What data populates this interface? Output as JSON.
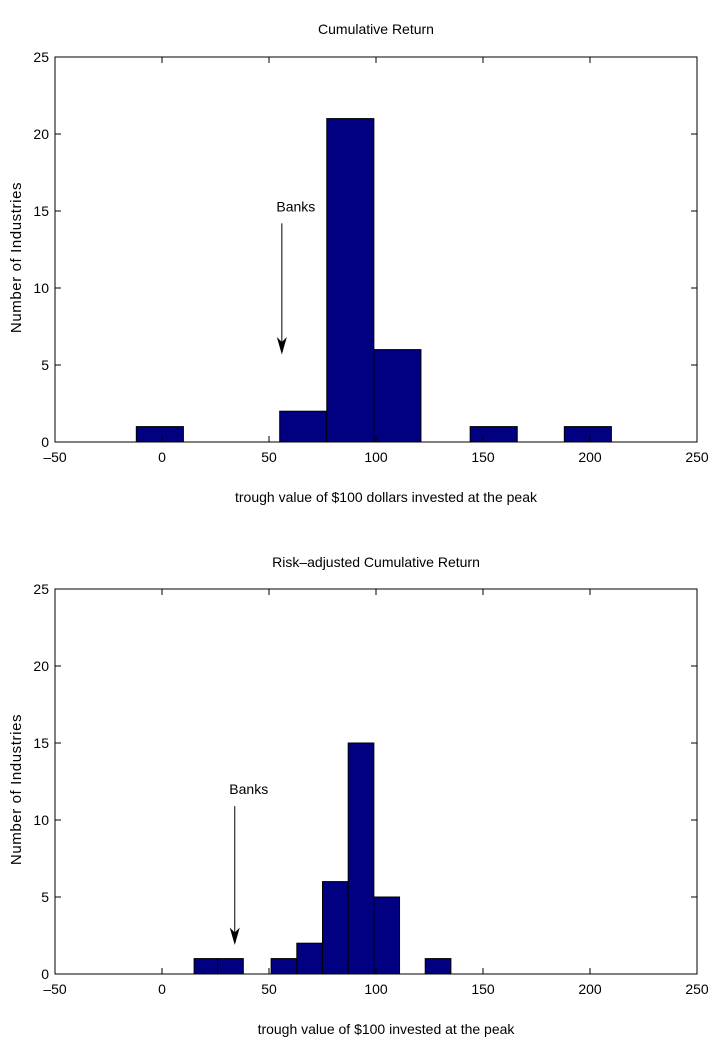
{
  "chart_data": [
    {
      "type": "bar",
      "title": "Cumulative Return",
      "xlabel": "trough value of $100 dollars invested at the peak",
      "ylabel": "Number of Industries",
      "xlim": [
        -50,
        250
      ],
      "ylim": [
        0,
        25
      ],
      "xticks": [
        "-50",
        "0",
        "50",
        "100",
        "150",
        "200",
        "250"
      ],
      "yticks": [
        "0",
        "5",
        "10",
        "15",
        "20",
        "25"
      ],
      "bar_color": "#000080",
      "bins": [
        {
          "from": -12,
          "to": 10,
          "count": 1
        },
        {
          "from": 55,
          "to": 77,
          "count": 2
        },
        {
          "from": 77,
          "to": 99,
          "count": 21
        },
        {
          "from": 99,
          "to": 121,
          "count": 6
        },
        {
          "from": 144,
          "to": 166,
          "count": 1
        },
        {
          "from": 188,
          "to": 210,
          "count": 1
        }
      ],
      "annotation": {
        "text": "Banks",
        "arrow_x": 56,
        "arrow_y_from": 14.2,
        "arrow_y_to": 5.8
      }
    },
    {
      "type": "bar",
      "title": "Risk–adjusted Cumulative Return",
      "xlabel": "trough value of $100 invested at the peak",
      "ylabel": "Number of Industries",
      "xlim": [
        -50,
        250
      ],
      "ylim": [
        0,
        25
      ],
      "xticks": [
        "-50",
        "0",
        "50",
        "100",
        "150",
        "200",
        "250"
      ],
      "yticks": [
        "0",
        "5",
        "10",
        "15",
        "20",
        "25"
      ],
      "bar_color": "#000080",
      "bins": [
        {
          "from": 15,
          "to": 26,
          "count": 1
        },
        {
          "from": 26,
          "to": 38,
          "count": 1
        },
        {
          "from": 51,
          "to": 63,
          "count": 1
        },
        {
          "from": 63,
          "to": 75,
          "count": 2
        },
        {
          "from": 75,
          "to": 87,
          "count": 6
        },
        {
          "from": 87,
          "to": 99,
          "count": 15
        },
        {
          "from": 99,
          "to": 111,
          "count": 5
        },
        {
          "from": 123,
          "to": 135,
          "count": 1
        }
      ],
      "annotation": {
        "text": "Banks",
        "arrow_x": 34,
        "arrow_y_from": 10.9,
        "arrow_y_to": 2.0
      }
    }
  ]
}
